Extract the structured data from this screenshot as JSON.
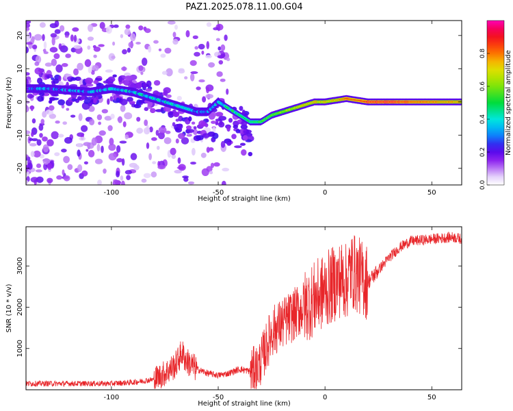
{
  "title": "PAZ1.2025.078.11.00.G04",
  "chart_data": [
    {
      "type": "heatmap",
      "xlabel": "Height of straight line (km)",
      "ylabel": "Frequency (Hz)",
      "xlim": [
        -140,
        64
      ],
      "ylim": [
        -25,
        24.5
      ],
      "xticks": [
        -100,
        -50,
        0,
        50
      ],
      "yticks": [
        -20,
        -10,
        0,
        10,
        20
      ],
      "colorbar": {
        "label": "Normalized spectral amplitude",
        "range": [
          0,
          1
        ],
        "ticks": [
          "0.0",
          "0.2",
          "0.4",
          "0.6",
          "0.8"
        ],
        "tick_values": [
          0,
          0.2,
          0.4,
          0.6,
          0.8
        ],
        "colormap": "rainbow"
      },
      "ridge": {
        "x": [
          -140,
          -130,
          -120,
          -110,
          -100,
          -90,
          -80,
          -70,
          -60,
          -55,
          -50,
          -45,
          -40,
          -35,
          -30,
          -25,
          -20,
          -15,
          -10,
          -5,
          0,
          5,
          10,
          15,
          20,
          30,
          40,
          50,
          64
        ],
        "y": [
          4,
          4,
          3.5,
          3,
          4,
          3,
          1,
          -1,
          -3,
          -3,
          0,
          -2,
          -4,
          -6,
          -6,
          -4,
          -3,
          -2,
          -1,
          0,
          0,
          0.5,
          1,
          0.5,
          0,
          0,
          0,
          0,
          0
        ],
        "amplitude": [
          0.3,
          0.3,
          0.3,
          0.35,
          0.35,
          0.4,
          0.4,
          0.4,
          0.35,
          0.3,
          0.35,
          0.45,
          0.5,
          0.5,
          0.55,
          0.6,
          0.65,
          0.7,
          0.75,
          0.75,
          0.75,
          0.75,
          0.9,
          0.85,
          0.95,
          0.95,
          0.9,
          0.85,
          0.8
        ]
      },
      "legend": "colorbar-right"
    },
    {
      "type": "line",
      "xlabel": "Height of straight line (km)",
      "ylabel": "SNR (10 * v/v)",
      "xlim": [
        -140,
        64
      ],
      "ylim": [
        0,
        3950
      ],
      "xticks": [
        -100,
        -50,
        0,
        50
      ],
      "yticks": [
        1000,
        2000,
        3000
      ],
      "color": "#e8262a",
      "x": [
        -140,
        -120,
        -100,
        -90,
        -80,
        -75,
        -70,
        -67,
        -65,
        -60,
        -55,
        -50,
        -45,
        -40,
        -35,
        -32,
        -30,
        -27,
        -25,
        -20,
        -15,
        -10,
        -5,
        0,
        5,
        8,
        10,
        12,
        15,
        20,
        25,
        30,
        35,
        40,
        50,
        60,
        64
      ],
      "y": [
        150,
        150,
        150,
        180,
        250,
        400,
        600,
        900,
        700,
        500,
        400,
        350,
        400,
        500,
        450,
        500,
        700,
        1100,
        1400,
        1600,
        1800,
        2000,
        2200,
        2400,
        2600,
        2700,
        2600,
        2900,
        2800,
        2600,
        2900,
        3200,
        3450,
        3600,
        3650,
        3700,
        3650
      ]
    }
  ]
}
